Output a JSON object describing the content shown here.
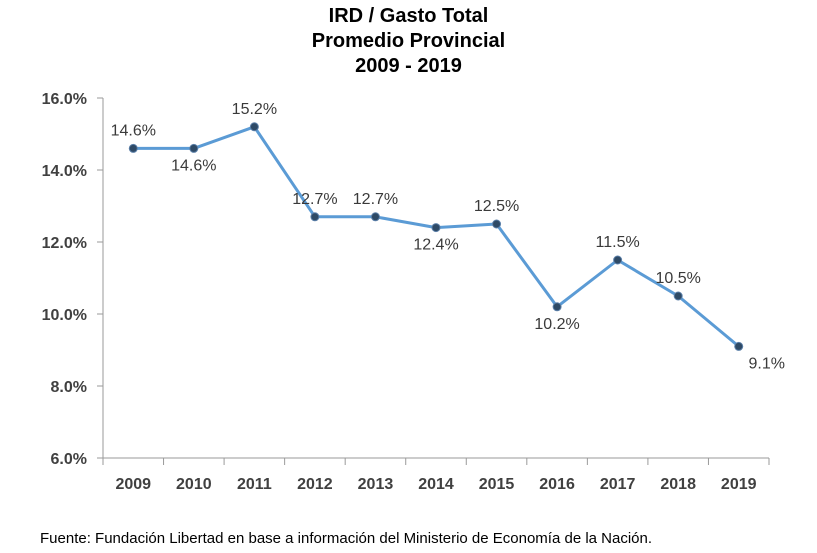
{
  "chart_data": {
    "type": "line",
    "title": [
      "IRD / Gasto Total",
      "Promedio Provincial",
      "2009 - 2019"
    ],
    "categories": [
      "2009",
      "2010",
      "2011",
      "2012",
      "2013",
      "2014",
      "2015",
      "2016",
      "2017",
      "2018",
      "2019"
    ],
    "series": [
      {
        "values": [
          14.6,
          14.6,
          15.2,
          12.7,
          12.7,
          12.4,
          12.5,
          10.2,
          11.5,
          10.5,
          9.1
        ],
        "labels": [
          "14.6%",
          "14.6%",
          "15.2%",
          "12.7%",
          "12.7%",
          "12.4%",
          "12.5%",
          "10.2%",
          "11.5%",
          "10.5%",
          "9.1%"
        ],
        "label_positions": [
          "above",
          "below",
          "above",
          "above",
          "above",
          "below",
          "above",
          "below",
          "above",
          "above",
          "below"
        ]
      }
    ],
    "ylim": [
      6,
      16
    ],
    "yticks": [
      "6.0%",
      "8.0%",
      "10.0%",
      "12.0%",
      "14.0%",
      "16.0%"
    ],
    "xlabel": "",
    "ylabel": "",
    "grid": false,
    "legend": "none",
    "line_color": "#5b9bd5",
    "marker_color": "#2e4a66",
    "label_color": "#3a3a3a"
  },
  "footer": {
    "source": "Fuente: Fundación Libertad en base a información del Ministerio de Economía de la Nación."
  }
}
